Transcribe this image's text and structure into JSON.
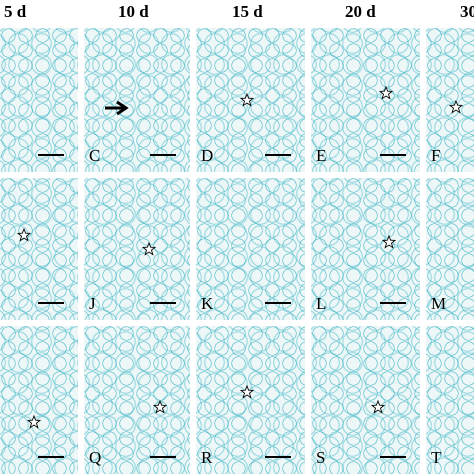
{
  "headers": [
    "5 d",
    "10 d",
    "15 d",
    "20 d",
    "30"
  ],
  "panel_labels": [
    [
      "C",
      "D",
      "E",
      "F"
    ],
    [
      "J",
      "K",
      "L",
      "M"
    ],
    [
      "Q",
      "R",
      "S",
      "T"
    ]
  ]
}
